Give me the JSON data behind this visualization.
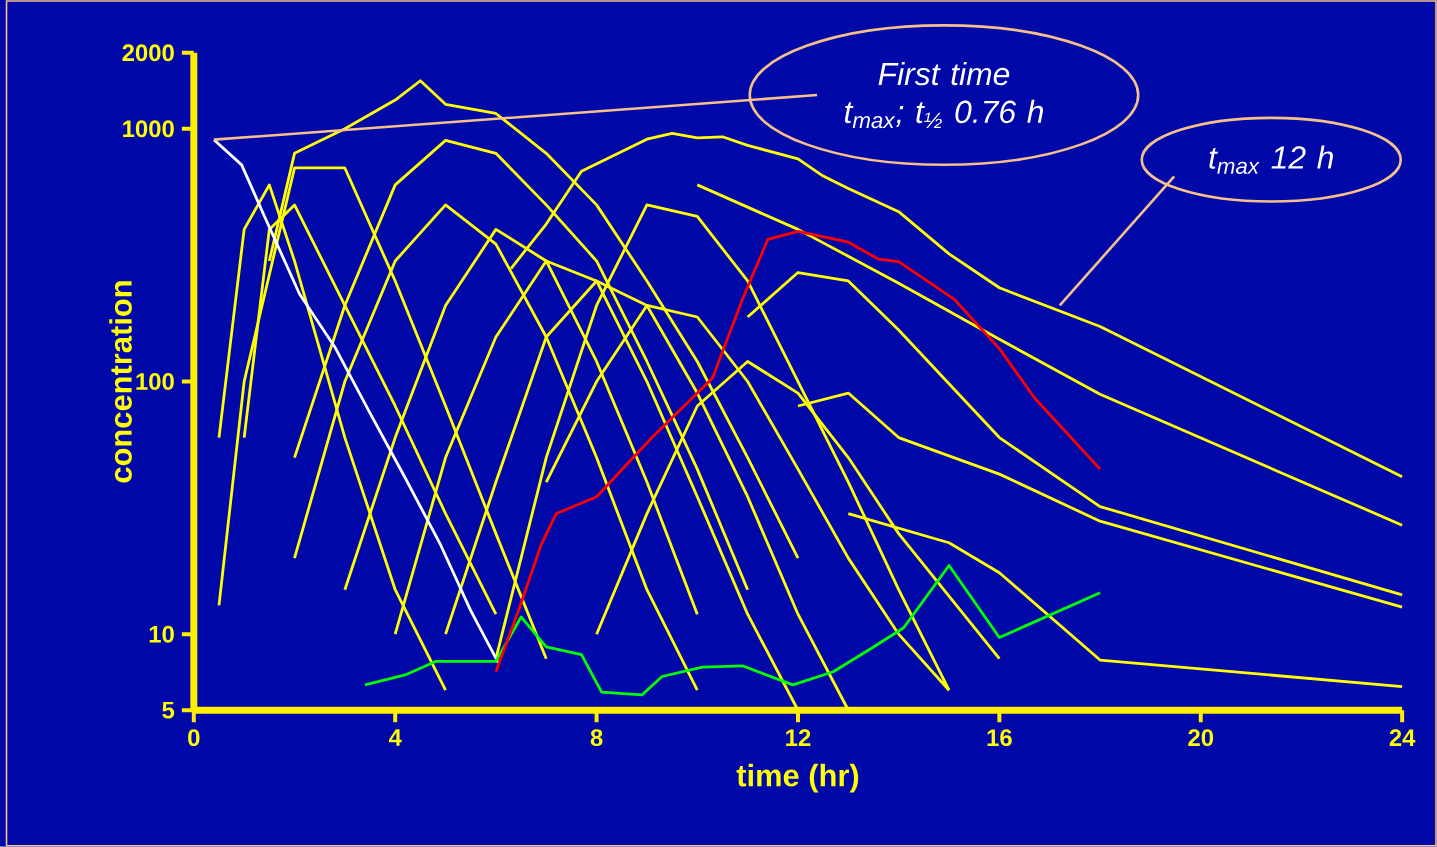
{
  "chart_data": {
    "type": "line",
    "xlabel": "time (hr)",
    "ylabel": "concentration",
    "log": "y",
    "xlim": [
      0,
      24
    ],
    "xticks": [
      0,
      4,
      8,
      12,
      16,
      20,
      24
    ],
    "ylim": [
      5,
      2000
    ],
    "yticks": [
      5,
      10,
      100,
      1000,
      2000
    ],
    "grid": false,
    "marker": "none",
    "line_style": "solid",
    "annotations": [
      {
        "text": "First time t$_{max}$; t$_{½}$ 0.76 h",
        "x": 0.4,
        "y": 906
      },
      {
        "text": "t$_{max}$ 12 h",
        "x": 17.2,
        "y": 200
      }
    ],
    "series": [
      {
        "color": "#ffff00",
        "x": [
          1.5,
          2,
          3,
          4,
          4.5,
          5,
          6,
          7,
          8,
          9,
          10,
          11,
          12
        ],
        "values": [
          300,
          800,
          1000,
          1300,
          1550,
          1250,
          1150,
          800,
          500,
          250,
          120,
          50,
          20
        ]
      },
      {
        "color": "#ffff00",
        "x": [
          1,
          1.5,
          2,
          3,
          4,
          5,
          6
        ],
        "values": [
          60,
          400,
          500,
          200,
          80,
          30,
          12
        ]
      },
      {
        "color": "#ffff00",
        "x": [
          0.5,
          1,
          2,
          3,
          4,
          5,
          6,
          7
        ],
        "values": [
          13,
          100,
          700,
          700,
          250,
          80,
          25,
          8
        ]
      },
      {
        "color": "#ffff00",
        "x": [
          2,
          3,
          4,
          5,
          6,
          7,
          8,
          9,
          10
        ],
        "values": [
          20,
          100,
          300,
          500,
          350,
          150,
          50,
          15,
          6
        ]
      },
      {
        "color": "#ffff00",
        "x": [
          3,
          4,
          5,
          6,
          7,
          8,
          9,
          10
        ],
        "values": [
          15,
          60,
          200,
          400,
          300,
          120,
          40,
          12
        ]
      },
      {
        "color": "#ffff00",
        "x": [
          4,
          5,
          6,
          7,
          8,
          9,
          10,
          11,
          12
        ],
        "values": [
          10,
          50,
          150,
          300,
          250,
          100,
          35,
          12,
          5
        ]
      },
      {
        "color": "#ffff00",
        "x": [
          5,
          6,
          7,
          8,
          9,
          10,
          11,
          12,
          13
        ],
        "values": [
          10,
          40,
          150,
          250,
          200,
          90,
          35,
          12,
          5
        ]
      },
      {
        "color": "#ffff00",
        "x": [
          6,
          7,
          8,
          9,
          10,
          11,
          12,
          13,
          14,
          15
        ],
        "values": [
          8,
          50,
          200,
          500,
          450,
          250,
          100,
          40,
          15,
          6
        ]
      },
      {
        "color": "#ffff00",
        "x": [
          0.5,
          1,
          1.5,
          2,
          3,
          4,
          5
        ],
        "values": [
          60,
          400,
          600,
          300,
          60,
          15,
          6
        ]
      },
      {
        "color": "#ffff00",
        "x": [
          2,
          3,
          4,
          5,
          6,
          7,
          8,
          9,
          10,
          11
        ],
        "values": [
          50,
          200,
          600,
          900,
          800,
          500,
          300,
          120,
          45,
          15
        ]
      },
      {
        "color": "#ffff00",
        "x": [
          7,
          8,
          9,
          10,
          11,
          12,
          13,
          14,
          15
        ],
        "values": [
          40,
          100,
          200,
          180,
          100,
          45,
          20,
          10,
          6
        ]
      },
      {
        "color": "#ffff00",
        "x": [
          8,
          9,
          10,
          11,
          12,
          13,
          14,
          16
        ],
        "values": [
          10,
          30,
          80,
          120,
          90,
          50,
          25,
          8
        ]
      },
      {
        "color": "#ffff00",
        "x": [
          10,
          12,
          14,
          16,
          18,
          24
        ],
        "values": [
          600,
          400,
          245,
          147,
          89,
          27
        ]
      },
      {
        "color": "#ffff00",
        "x": [
          11,
          12,
          13,
          14,
          16,
          18,
          24
        ],
        "values": [
          180,
          270,
          250,
          160,
          60,
          32,
          14.3
        ]
      },
      {
        "color": "#ffff00",
        "x": [
          12,
          13,
          14,
          16,
          18,
          24
        ],
        "values": [
          80,
          90,
          60,
          43,
          28,
          12.8
        ]
      },
      {
        "color": "#ffff00",
        "x": [
          13,
          15,
          16,
          18,
          24
        ],
        "values": [
          30,
          23,
          17.5,
          7.9,
          6.2
        ]
      },
      {
        "color": "#ffffff",
        "x": [
          0.4,
          0.95,
          1.4,
          2.1,
          2.8,
          3.5,
          4.2,
          4.9,
          5.5,
          6.05
        ],
        "values": [
          906,
          720,
          452,
          222,
          137,
          75,
          41.5,
          22.6,
          12.4,
          7.7
        ]
      },
      {
        "color": "#00ff00",
        "x": [
          3.4,
          4.2,
          4.8,
          6,
          6.5,
          7,
          7.7,
          8.1,
          8.9,
          9.3,
          10.1,
          10.9,
          11.9,
          12.7,
          13.5,
          14.1,
          15,
          16,
          18
        ],
        "values": [
          6.3,
          6.9,
          7.8,
          7.8,
          11.7,
          8.9,
          8.3,
          5.9,
          5.75,
          6.8,
          7.4,
          7.5,
          6.3,
          7.1,
          8.9,
          10.6,
          18.7,
          9.7,
          14.6
        ]
      },
      {
        "color": "#ff0000",
        "x": [
          6,
          6.45,
          6.9,
          7.2,
          8,
          9.1,
          10.3,
          10.9,
          11.4,
          12,
          13,
          13.6,
          14,
          15.1,
          16,
          16.7,
          18
        ],
        "values": [
          7.1,
          12.4,
          22.6,
          30,
          35,
          60,
          103,
          212,
          365,
          393,
          356,
          305,
          298,
          212,
          135,
          86,
          45
        ]
      },
      {
        "color": "#ffff00",
        "x": [
          6.3,
          7,
          7.7,
          9,
          9.5,
          10,
          10.5,
          11,
          12,
          12.5,
          13,
          14,
          15,
          16,
          18,
          24
        ],
        "values": [
          280,
          420,
          680,
          910,
          960,
          920,
          930,
          860,
          760,
          650,
          580,
          470,
          320,
          235,
          165,
          42
        ]
      }
    ]
  }
}
